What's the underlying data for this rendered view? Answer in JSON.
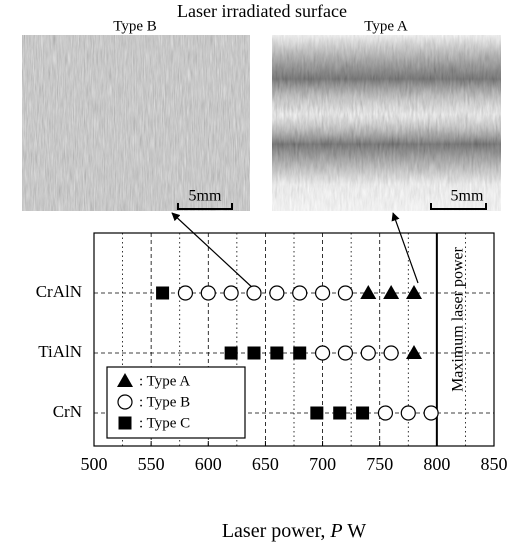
{
  "photos": {
    "title": "Laser irradiated surface",
    "panels": [
      {
        "label": "Type B",
        "scale_bar": "5mm"
      },
      {
        "label": "Type A",
        "scale_bar": "5mm"
      }
    ]
  },
  "chart_data": {
    "type": "scatter",
    "categories": [
      "CrAlN",
      "TiAlN",
      "CrN"
    ],
    "series": [
      {
        "name": ": Type A",
        "marker": "triangle",
        "color": "#000000",
        "category": [
          "CrAlN",
          "CrAlN",
          "CrAlN",
          "TiAlN"
        ],
        "values": [
          740,
          760,
          780,
          780
        ]
      },
      {
        "name": ": Type B",
        "marker": "circle",
        "color": "#000000",
        "category": [
          "CrAlN",
          "CrAlN",
          "CrAlN",
          "CrAlN",
          "CrAlN",
          "CrAlN",
          "CrAlN",
          "CrAlN",
          "TiAlN",
          "TiAlN",
          "TiAlN",
          "TiAlN",
          "CrN",
          "CrN",
          "CrN"
        ],
        "values": [
          580,
          600,
          620,
          640,
          660,
          680,
          700,
          720,
          700,
          720,
          740,
          760,
          755,
          775,
          795
        ]
      },
      {
        "name": ": Type C",
        "marker": "square",
        "color": "#000000",
        "category": [
          "CrAlN",
          "TiAlN",
          "TiAlN",
          "TiAlN",
          "TiAlN",
          "CrN",
          "CrN",
          "CrN"
        ],
        "values": [
          560,
          620,
          640,
          660,
          680,
          695,
          715,
          735
        ]
      }
    ],
    "xlim": [
      500,
      850
    ],
    "xticks": [
      500,
      550,
      600,
      650,
      700,
      750,
      800,
      850
    ],
    "xminorticks": [
      525,
      575,
      625,
      675,
      725,
      775,
      825
    ],
    "xlabel": {
      "text": "Laser power, ",
      "var": "P",
      "unit": " W"
    },
    "grid": true,
    "legend": "lower left",
    "annotation": {
      "text": "Maximum laser power",
      "x": 800
    }
  }
}
